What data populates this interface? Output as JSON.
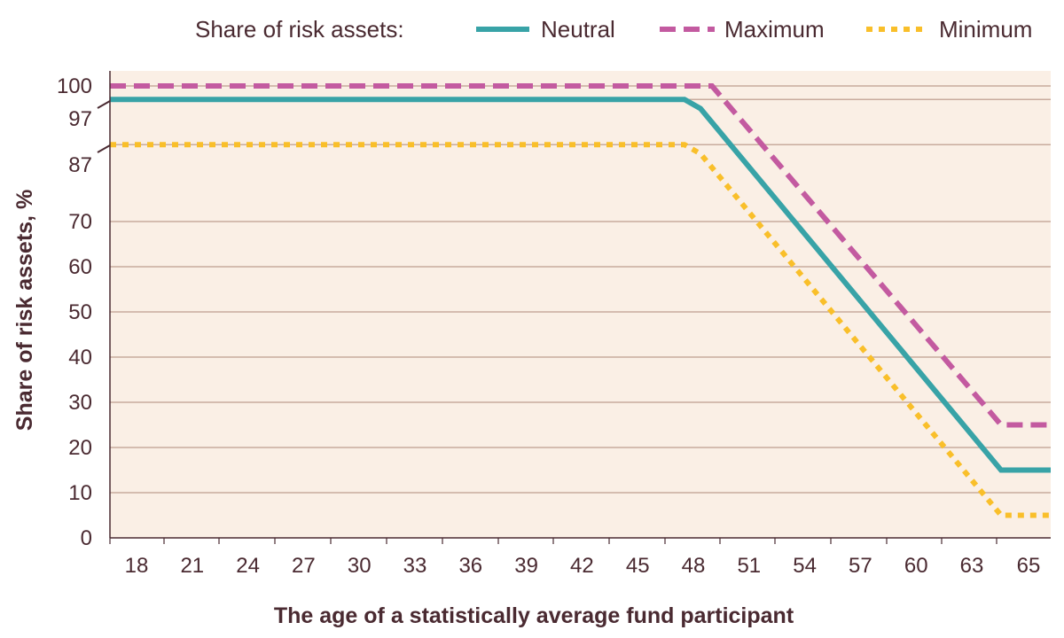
{
  "chart_data": {
    "type": "line",
    "title": "",
    "xlabel": "The age of a statistically average fund participant",
    "ylabel": "Share of risk assets, %",
    "legend_title": "Share of risk assets:",
    "legend_position": "top-right",
    "x_ticks": [
      "18",
      "21",
      "24",
      "27",
      "30",
      "33",
      "36",
      "39",
      "42",
      "45",
      "48",
      "51",
      "54",
      "57",
      "60",
      "63",
      "65"
    ],
    "y_ticks": [
      "0",
      "10",
      "20",
      "30",
      "40",
      "50",
      "60",
      "70",
      "87",
      "97",
      "100"
    ],
    "axis_break": "between 70 and 100 the axis is compressed; 87 and 97 labels are offset",
    "grid": true,
    "series": [
      {
        "name": "Neutral",
        "color": "#38a3a7",
        "style": "solid",
        "points": [
          [
            "18",
            97
          ],
          [
            "48",
            97
          ],
          [
            "48.5",
            95
          ],
          [
            "64",
            15
          ],
          [
            "65",
            15
          ]
        ]
      },
      {
        "name": "Maximum",
        "color": "#c35aa0",
        "style": "dashed",
        "points": [
          [
            "18",
            100
          ],
          [
            "49",
            100
          ],
          [
            "64",
            25
          ],
          [
            "65",
            25
          ]
        ]
      },
      {
        "name": "Minimum",
        "color": "#f9bf2a",
        "style": "dotted",
        "points": [
          [
            "18",
            87
          ],
          [
            "48",
            87
          ],
          [
            "48.5",
            85
          ],
          [
            "64",
            5
          ],
          [
            "65",
            5
          ]
        ]
      }
    ]
  }
}
